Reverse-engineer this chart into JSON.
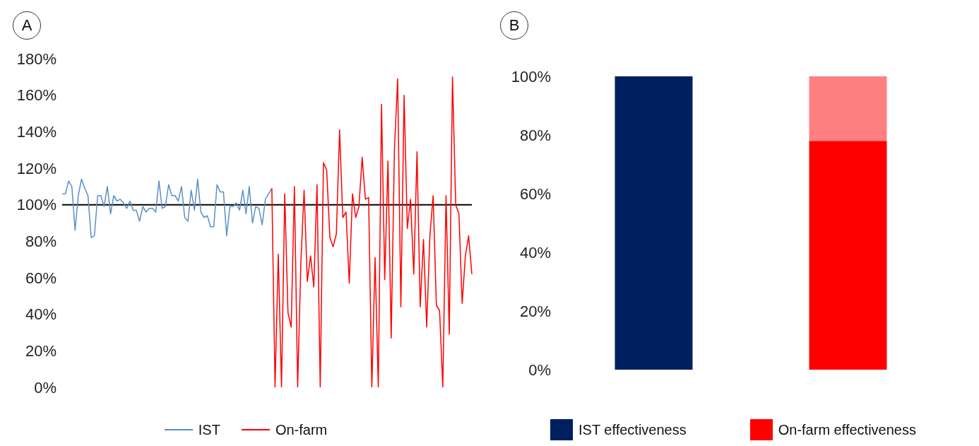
{
  "chart_data": [
    {
      "type": "line",
      "title": "A",
      "categories": [
        null,
        null,
        null,
        null,
        null,
        null,
        null,
        null,
        null,
        null,
        null,
        null,
        null,
        null,
        null,
        null,
        null,
        null,
        null,
        null,
        null,
        null,
        null,
        null,
        null,
        null,
        null,
        null,
        null,
        null,
        null,
        null,
        null,
        null,
        null,
        null,
        null,
        null,
        null,
        null,
        null,
        null,
        null,
        null,
        null,
        null,
        null,
        null,
        null,
        null,
        null,
        null,
        null,
        null,
        null,
        null,
        null,
        null,
        null,
        null,
        null,
        null,
        null,
        null,
        null,
        null,
        null,
        null,
        null,
        null,
        null,
        null,
        null,
        null,
        null,
        null,
        null,
        null,
        null,
        null,
        null,
        null,
        null,
        null,
        null,
        null,
        null,
        null,
        null,
        null,
        null,
        null,
        null,
        null,
        null,
        null,
        null,
        null,
        null,
        null,
        null,
        null,
        null,
        null,
        null,
        null,
        null,
        null,
        null,
        null,
        null,
        null,
        null,
        null,
        null,
        null,
        null,
        null,
        null,
        null,
        null,
        null,
        null,
        null,
        null,
        null,
        null,
        null
      ],
      "ylim": [
        0,
        180
      ],
      "yticks": [
        {
          "value": 0,
          "label": "0%"
        },
        {
          "value": 20,
          "label": "20%"
        },
        {
          "value": 40,
          "label": "40%"
        },
        {
          "value": 60,
          "label": "60%"
        },
        {
          "value": 80,
          "label": "80%"
        },
        {
          "value": 100,
          "label": "100%"
        },
        {
          "value": 120,
          "label": "120%"
        },
        {
          "value": 140,
          "label": "140%"
        },
        {
          "value": 160,
          "label": "160%"
        },
        {
          "value": 180,
          "label": "180%"
        }
      ],
      "legend": "bottom",
      "ref_lines": [
        {
          "axis": "y",
          "value": 100,
          "color": "#000000"
        }
      ],
      "series": [
        {
          "name": "IST",
          "color": "#5b8fc7",
          "values": [
            106,
            106,
            113,
            110,
            86,
            105,
            114,
            109,
            105,
            82,
            83,
            105,
            105,
            99,
            110,
            95,
            105,
            102,
            103,
            101,
            98,
            102,
            97,
            97,
            91,
            99,
            96,
            98,
            98,
            96,
            113,
            98,
            99,
            111,
            105,
            105,
            102,
            110,
            93,
            91,
            108,
            97,
            114,
            96,
            93,
            94,
            88,
            88,
            111,
            107,
            107,
            83,
            99,
            99,
            101,
            97,
            108,
            95,
            110,
            90,
            99,
            98,
            89,
            103,
            106,
            109,
            null,
            null,
            null,
            null,
            null,
            null,
            null,
            null,
            null,
            null,
            null,
            null,
            null,
            null,
            null,
            null,
            null,
            null,
            null,
            null,
            null,
            null,
            null,
            null,
            null,
            null,
            null,
            null,
            null,
            null,
            null,
            null,
            null,
            null,
            null,
            null,
            null,
            null,
            null,
            null,
            null,
            null,
            null,
            null,
            null,
            null,
            null,
            null,
            null,
            null,
            null,
            null,
            null,
            null,
            null,
            null,
            null,
            null,
            null,
            null,
            null,
            null
          ]
        },
        {
          "name": "On-farm",
          "color": "#ff0000",
          "values": [
            null,
            null,
            null,
            null,
            null,
            null,
            null,
            null,
            null,
            null,
            null,
            null,
            null,
            null,
            null,
            null,
            null,
            null,
            null,
            null,
            null,
            null,
            null,
            null,
            null,
            null,
            null,
            null,
            null,
            null,
            null,
            null,
            null,
            null,
            null,
            null,
            null,
            null,
            null,
            null,
            null,
            null,
            null,
            null,
            null,
            null,
            null,
            null,
            null,
            null,
            null,
            null,
            null,
            null,
            null,
            null,
            null,
            null,
            null,
            null,
            null,
            null,
            null,
            null,
            null,
            109,
            0,
            73,
            0,
            106,
            41,
            33,
            110,
            0,
            68,
            108,
            58,
            72,
            55,
            111,
            0,
            123,
            119,
            82,
            77,
            84,
            141,
            93,
            96,
            57,
            106,
            93,
            99,
            126,
            103,
            104,
            0,
            71,
            0,
            155,
            59,
            124,
            27,
            130,
            169,
            44,
            160,
            87,
            103,
            62,
            129,
            44,
            81,
            33,
            83,
            105,
            45,
            42,
            0,
            105,
            29,
            170,
            100,
            95,
            46,
            72,
            83,
            62
          ]
        }
      ]
    },
    {
      "type": "bar",
      "title": "B",
      "categories": [
        null,
        null
      ],
      "stacked": true,
      "ylim": [
        0,
        100
      ],
      "yticks": [
        {
          "value": 0,
          "label": "0%"
        },
        {
          "value": 20,
          "label": "20%"
        },
        {
          "value": 40,
          "label": "40%"
        },
        {
          "value": 60,
          "label": "60%"
        },
        {
          "value": 80,
          "label": "80%"
        },
        {
          "value": 100,
          "label": "100%"
        }
      ],
      "legend": "bottom",
      "series": [
        {
          "name": "IST effectiveness",
          "color": "#001f5f",
          "values": [
            100,
            null
          ]
        },
        {
          "name": "On-farm effectiveness",
          "color": "#ff0000",
          "values": [
            null,
            78
          ]
        },
        {
          "color": "#ff8080",
          "values": [
            null,
            22
          ]
        }
      ]
    }
  ]
}
